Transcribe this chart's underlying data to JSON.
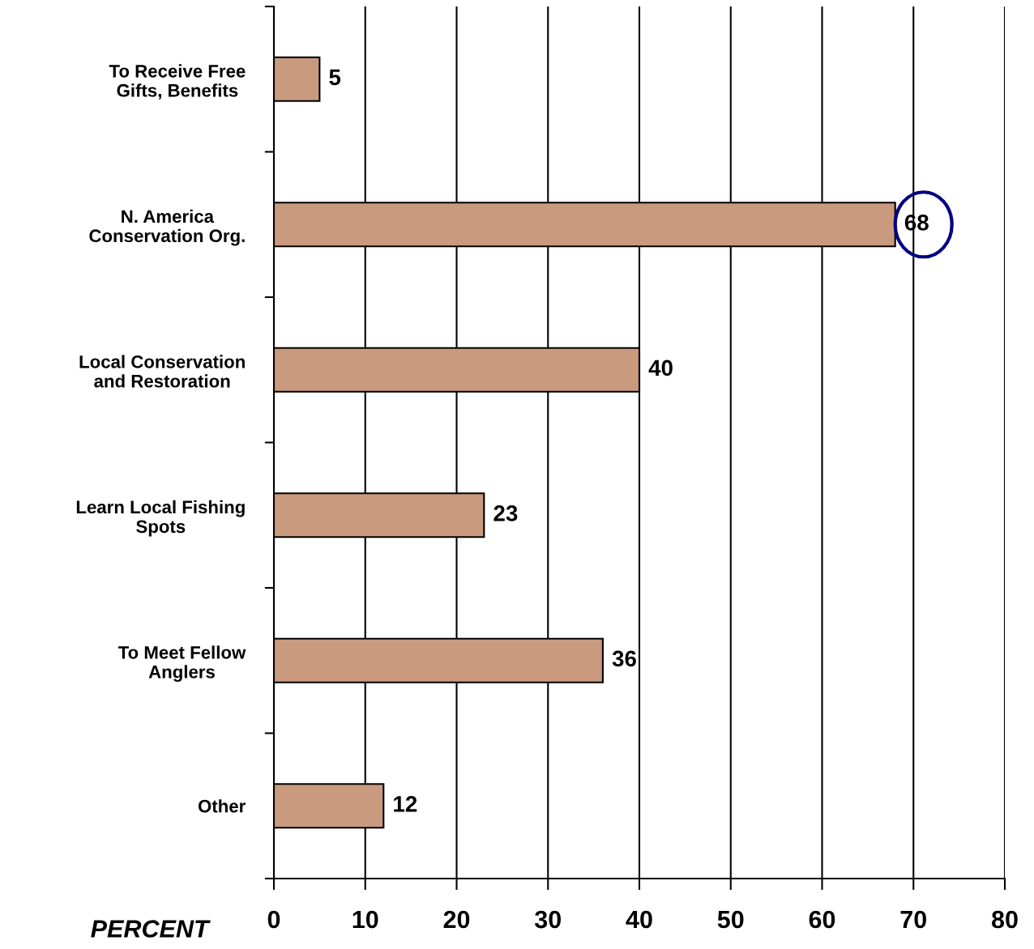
{
  "chart_data": {
    "type": "bar",
    "orientation": "horizontal",
    "xlabel": "PERCENT",
    "categories": [
      "To Receive Free\nGifts, Benefits",
      "N. America\nConservation Org.",
      "Local Conservation\nand Restoration",
      "Learn Local Fishing\nSpots",
      "To Meet Fellow\nAnglers",
      "Other"
    ],
    "values": [
      5,
      68,
      40,
      23,
      36,
      12
    ],
    "color": "#c99a7e",
    "xlim": [
      0,
      80
    ],
    "xticks": [
      0,
      10,
      20,
      30,
      40,
      50,
      60,
      70,
      80
    ],
    "grid": "x",
    "data_labels": true
  }
}
